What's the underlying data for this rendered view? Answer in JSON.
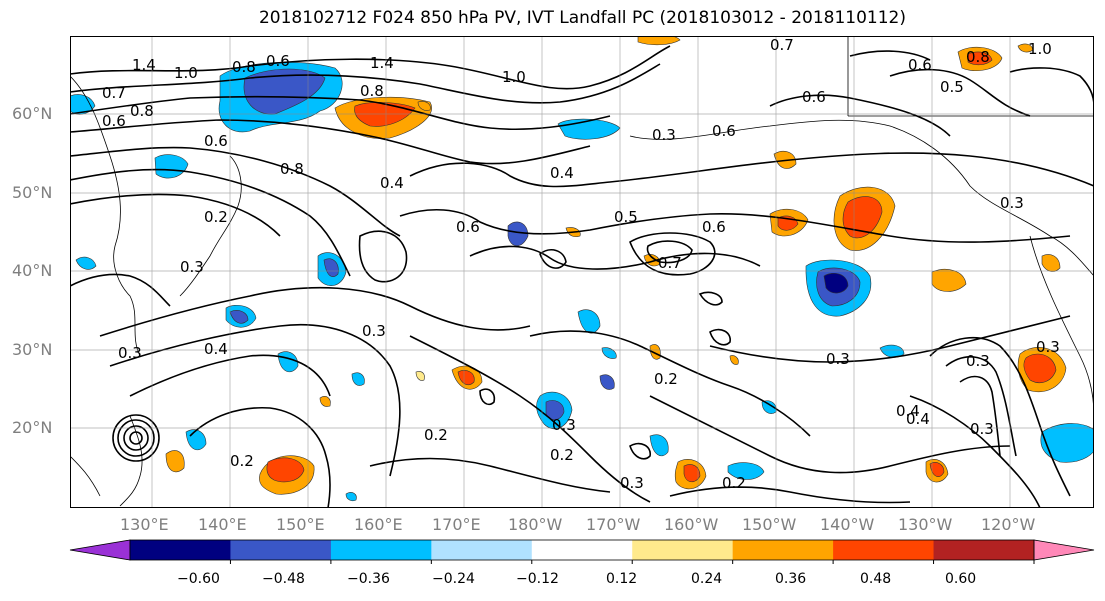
{
  "title": "2018102712 F024 850 hPa PV, IVT Landfall PC (2018103012 - 2018110112)",
  "lat_labels": [
    "60°N",
    "50°N",
    "40°N",
    "30°N",
    "20°N"
  ],
  "lon_labels": [
    "130°E",
    "140°E",
    "150°E",
    "160°E",
    "170°E",
    "180°W",
    "170°W",
    "160°W",
    "150°W",
    "140°W",
    "130°W",
    "120°W"
  ],
  "colorbar": {
    "colors": [
      "#9a31d6",
      "#000080",
      "#3a57c7",
      "#00bfff",
      "#b0e2ff",
      "#ffffff",
      "#ffea8c",
      "#ffa500",
      "#ff4500",
      "#b22222",
      "#ff88b8"
    ],
    "ticks": [
      "−0.60",
      "−0.48",
      "−0.36",
      "−0.24",
      "−0.12",
      "0.12",
      "0.24",
      "0.36",
      "0.48",
      "0.60"
    ]
  },
  "contour_labels": [
    "1.4",
    "1.0",
    "0.6",
    "0.8",
    "1.4",
    "1.0",
    "0.8",
    "0.7",
    "0.6",
    "0.8",
    "0.8",
    "0.6",
    "0.3",
    "0.4",
    "0.2",
    "0.3",
    "0.4",
    "0.4",
    "0.6",
    "0.5",
    "0.6",
    "0.7",
    "0.3",
    "0.3",
    "0.4",
    "0.3",
    "0.2",
    "0.3",
    "0.2",
    "0.2",
    "0.3",
    "0.2",
    "0.2",
    "0.7",
    "0.6",
    "0.5",
    "1.0",
    "0.8",
    "0.6",
    "0.6",
    "0.3",
    "0.3",
    "0.3",
    "0.4",
    "0.3"
  ]
}
